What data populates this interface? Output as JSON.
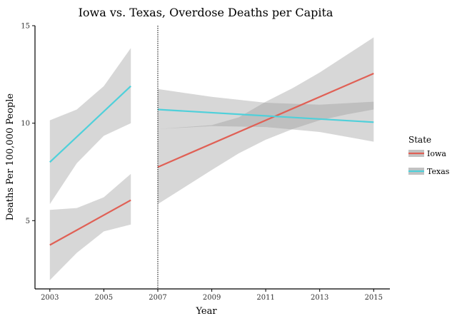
{
  "chart_data": {
    "type": "line",
    "title": "Iowa vs. Texas, Overdose Deaths per Capita",
    "xlabel": "Year",
    "ylabel": "Deaths Per 100,000 People",
    "x_ticks": [
      2003,
      2005,
      2007,
      2009,
      2011,
      2013,
      2015
    ],
    "y_ticks": [
      5,
      10,
      15
    ],
    "xlim": [
      2002.45,
      2015.6
    ],
    "ylim": [
      1.5,
      15
    ],
    "grid": false,
    "vertical_reference_line": 2007,
    "legend": {
      "title": "State",
      "position": "right",
      "entries": [
        {
          "label": "Iowa",
          "color": "#e06055"
        },
        {
          "label": "Texas",
          "color": "#4fd0da"
        }
      ]
    },
    "series": [
      {
        "name": "Iowa",
        "color": "#e06055",
        "segments": [
          {
            "x": [
              2003,
              2006
            ],
            "y": [
              3.75,
              6.05
            ],
            "ci_x": [
              2003,
              2004,
              2005,
              2006
            ],
            "ci_lower": [
              1.95,
              3.35,
              4.45,
              4.8
            ],
            "ci_upper": [
              5.55,
              5.65,
              6.2,
              7.4
            ]
          },
          {
            "x": [
              2007,
              2015
            ],
            "y": [
              7.75,
              12.55
            ],
            "ci_x": [
              2007,
              2009,
              2010,
              2011,
              2012,
              2013,
              2014,
              2015
            ],
            "ci_lower": [
              5.85,
              7.6,
              8.45,
              9.15,
              9.7,
              10.15,
              10.45,
              10.7
            ],
            "ci_upper": [
              9.7,
              9.9,
              10.3,
              11.1,
              11.8,
              12.6,
              13.5,
              14.4
            ]
          }
        ]
      },
      {
        "name": "Texas",
        "color": "#4fd0da",
        "segments": [
          {
            "x": [
              2003,
              2006
            ],
            "y": [
              8.0,
              11.9
            ],
            "ci_x": [
              2003,
              2004,
              2005,
              2006
            ],
            "ci_lower": [
              5.85,
              7.95,
              9.35,
              10.0
            ],
            "ci_upper": [
              10.15,
              10.7,
              11.9,
              13.85
            ]
          },
          {
            "x": [
              2007,
              2015
            ],
            "y": [
              10.7,
              10.05
            ],
            "ci_x": [
              2007,
              2009,
              2011,
              2013,
              2015
            ],
            "ci_lower": [
              9.7,
              9.85,
              9.8,
              9.55,
              9.05
            ],
            "ci_upper": [
              11.75,
              11.35,
              11.05,
              10.95,
              11.1
            ]
          }
        ]
      }
    ]
  }
}
